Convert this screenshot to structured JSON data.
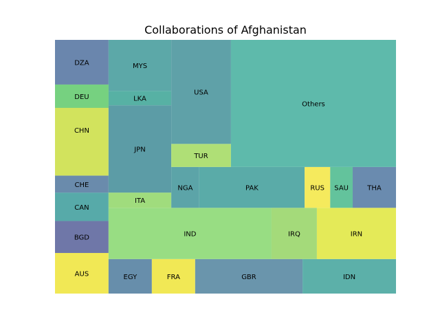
{
  "chart_data": {
    "type": "treemap",
    "title": "Collaborations of Afghanistan",
    "xlim": [
      0,
      100
    ],
    "ylim": [
      0,
      100
    ],
    "cells": [
      {
        "label": "AUS",
        "x0": 0.0,
        "x1": 15.7,
        "y0": 0.0,
        "y1": 16.0,
        "color": "#f0e543"
      },
      {
        "label": "BGD",
        "x0": 0.0,
        "x1": 15.7,
        "y0": 16.0,
        "y1": 28.6,
        "color": "#5f689e"
      },
      {
        "label": "CAN",
        "x0": 0.0,
        "x1": 15.7,
        "y0": 28.6,
        "y1": 39.8,
        "color": "#45a1a0"
      },
      {
        "label": "CHE",
        "x0": 0.0,
        "x1": 15.7,
        "y0": 39.8,
        "y1": 46.5,
        "color": "#5a7ea3"
      },
      {
        "label": "CHN",
        "x0": 0.0,
        "x1": 15.7,
        "y0": 46.5,
        "y1": 82.4,
        "color": "#cde04b"
      },
      {
        "label": "DEU",
        "x0": 0.0,
        "x1": 15.7,
        "y0": 82.4,
        "y1": 82.4,
        "color": "#6cce84"
      },
      {
        "label": "DEU",
        "x0": 0.0,
        "x1": 15.7,
        "y0": 73.2,
        "y1": 82.4,
        "color": "#6cce84",
        "hidden": true
      },
      {
        "label": "DZA",
        "x0": 0.0,
        "x1": 15.7,
        "y0": 82.4,
        "y1": 100.0,
        "color": "#5a79a4"
      },
      {
        "label": "EGY",
        "x0": 15.7,
        "x1": 28.4,
        "y0": 0.0,
        "y1": 13.6,
        "color": "#5682a2"
      },
      {
        "label": "FRA",
        "x0": 28.4,
        "x1": 41.1,
        "y0": 0.0,
        "y1": 13.6,
        "color": "#f0e543"
      },
      {
        "label": "GBR",
        "x0": 41.1,
        "x1": 72.6,
        "y0": 0.0,
        "y1": 13.6,
        "color": "#5a8aa3"
      },
      {
        "label": "IDN",
        "x0": 72.6,
        "x1": 100.0,
        "y0": 0.0,
        "y1": 13.6,
        "color": "#4aa7a0"
      },
      {
        "label": "IND",
        "x0": 15.7,
        "x1": 63.5,
        "y0": 13.6,
        "y1": 33.8,
        "color": "#8dd975"
      },
      {
        "label": "IRQ",
        "x0": 63.5,
        "x1": 76.8,
        "y0": 13.6,
        "y1": 33.8,
        "color": "#9ad66b"
      },
      {
        "label": "IRN",
        "x0": 76.8,
        "x1": 100.0,
        "y0": 13.6,
        "y1": 33.8,
        "color": "#e1e846"
      },
      {
        "label": "ITA",
        "x0": 15.7,
        "x1": 34.1,
        "y0": 33.8,
        "y1": 39.8,
        "color": "#96d86f"
      },
      {
        "label": "JPN",
        "x0": 15.7,
        "x1": 34.1,
        "y0": 39.8,
        "y1": 74.2,
        "color": "#4a919c"
      },
      {
        "label": "LKA",
        "x0": 15.7,
        "x1": 34.1,
        "y0": 74.2,
        "y1": 79.9,
        "color": "#45a89a"
      },
      {
        "label": "MYS",
        "x0": 15.7,
        "x1": 34.1,
        "y0": 79.9,
        "y1": 100.0,
        "color": "#4a9e9f"
      },
      {
        "label": "NGA",
        "x0": 34.1,
        "x1": 42.3,
        "y0": 33.8,
        "y1": 49.9,
        "color": "#4a9a9e"
      },
      {
        "label": "PAK",
        "x0": 42.3,
        "x1": 73.2,
        "y0": 33.8,
        "y1": 49.9,
        "color": "#48a29f"
      },
      {
        "label": "RUS",
        "x0": 73.2,
        "x1": 80.7,
        "y0": 33.8,
        "y1": 49.9,
        "color": "#f4e84b"
      },
      {
        "label": "SAU",
        "x0": 80.7,
        "x1": 87.3,
        "y0": 33.8,
        "y1": 49.9,
        "color": "#52bc91"
      },
      {
        "label": "THA",
        "x0": 87.3,
        "x1": 100.0,
        "y0": 33.8,
        "y1": 49.9,
        "color": "#5a7ea6"
      },
      {
        "label": "TUR",
        "x0": 34.1,
        "x1": 51.6,
        "y0": 49.9,
        "y1": 59.0,
        "color": "#a6dc67"
      },
      {
        "label": "USA",
        "x0": 34.1,
        "x1": 51.6,
        "y0": 59.0,
        "y1": 100.0,
        "color": "#4e979f"
      },
      {
        "label": "Others",
        "x0": 51.6,
        "x1": 100.0,
        "y0": 49.9,
        "y1": 100.0,
        "color": "#4db3a2"
      }
    ],
    "grid": false,
    "legend": "none",
    "opacity": 0.9
  }
}
